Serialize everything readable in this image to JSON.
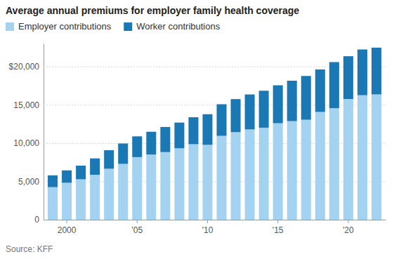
{
  "chart_data": {
    "type": "bar",
    "stacked": true,
    "title": "Average annual premiums for employer family health coverage",
    "source": "Source: KFF",
    "categories": [
      null,
      "2000",
      null,
      null,
      null,
      null,
      "'05",
      null,
      null,
      null,
      null,
      "'10",
      null,
      null,
      null,
      null,
      "'15",
      null,
      null,
      null,
      null,
      "'20",
      null,
      null
    ],
    "series": [
      {
        "name": "Employer contributions",
        "color": "#a3d3f1",
        "values": [
          4247,
          4819,
          5274,
          5866,
          6657,
          7289,
          8167,
          8508,
          8824,
          9325,
          9860,
          9773,
          10944,
          11429,
          11786,
          12011,
          12591,
          12865,
          13049,
          14069,
          14561,
          15754,
          16253,
          16357
        ]
      },
      {
        "name": "Worker contributions",
        "color": "#1a78b4",
        "values": [
          1543,
          1619,
          1787,
          2137,
          2412,
          2661,
          2713,
          2973,
          3281,
          3354,
          3515,
          3997,
          4129,
          4316,
          4565,
          4823,
          4955,
          5277,
          5714,
          5547,
          6015,
          5588,
          5969,
          6106
        ]
      }
    ],
    "ylim": [
      0,
      23000
    ],
    "yticks": [
      0,
      {
        "value": 5000,
        "label": "5,000"
      },
      {
        "value": 10000,
        "label": "10,000"
      },
      {
        "value": 15000,
        "label": "15,000"
      },
      {
        "value": 20000,
        "label": "$20,000"
      }
    ],
    "grid": true,
    "legend": "top-left"
  }
}
